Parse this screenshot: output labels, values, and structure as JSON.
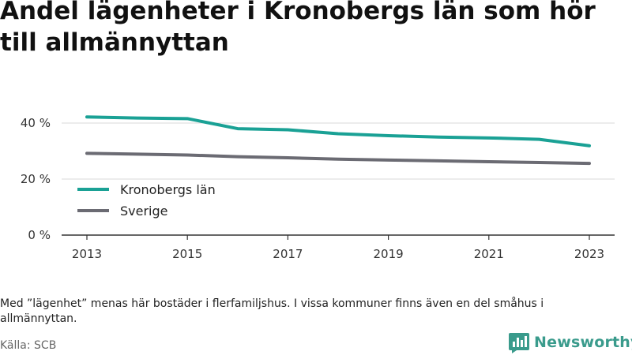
{
  "title": "Andel lägenheter i Kronobergs län som hör till allmännyttan",
  "note": "Med ”lägenhet” menas här bostäder i flerfamiljshus. I vissa kommuner finns även en del småhus i allmännyttan.",
  "source": "Källa: SCB",
  "brand": {
    "name": "Newsworthy",
    "color": "#3a9b8c",
    "logo_icon": "bar-chart-bubble-icon"
  },
  "chart_data": {
    "type": "line",
    "x": [
      2013,
      2014,
      2015,
      2016,
      2017,
      2018,
      2019,
      2020,
      2021,
      2022,
      2023
    ],
    "xticks": [
      "2013",
      "2015",
      "2017",
      "2019",
      "2021",
      "2023"
    ],
    "yticks": [
      "0 %",
      "20 %",
      "40 %"
    ],
    "ylim": [
      0,
      45
    ],
    "grid": true,
    "legend_position": "bottom-left",
    "series": [
      {
        "name": "Kronobergs län",
        "color": "#1aa195",
        "values": [
          42.2,
          41.8,
          41.6,
          38.0,
          37.6,
          36.2,
          35.5,
          35.0,
          34.7,
          34.2,
          31.9
        ]
      },
      {
        "name": "Sverige",
        "color": "#6b6b73",
        "values": [
          29.2,
          28.9,
          28.6,
          28.0,
          27.6,
          27.1,
          26.8,
          26.5,
          26.2,
          25.9,
          25.6
        ]
      }
    ]
  }
}
